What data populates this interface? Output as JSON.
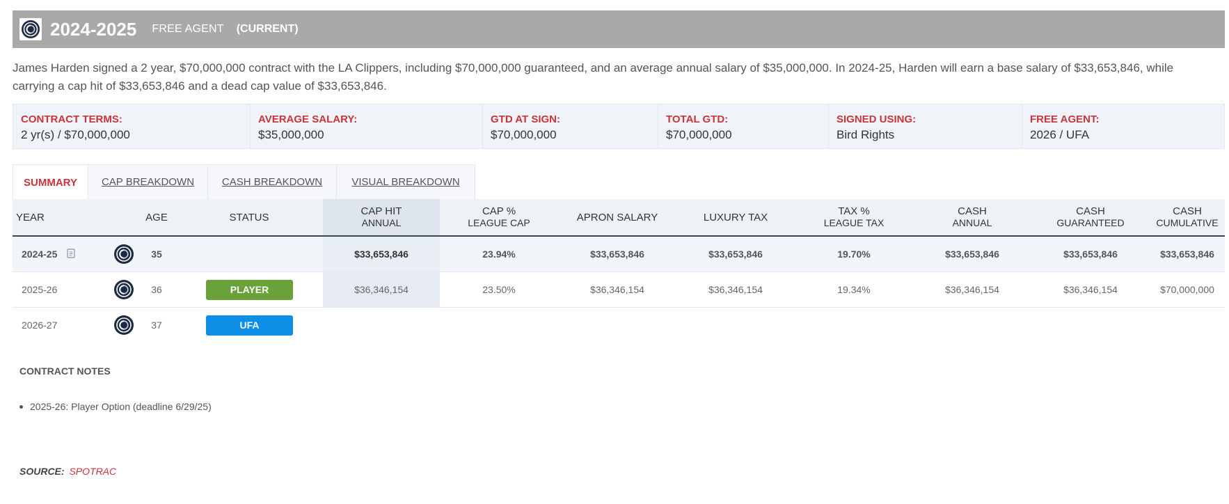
{
  "header": {
    "year": "2024-2025",
    "free_agent": "FREE AGENT",
    "current": "(CURRENT)"
  },
  "description": "James Harden signed a 2 year, $70,000,000 contract with the LA Clippers, including $70,000,000 guaranteed, and an average annual salary of $35,000,000. In 2024-25, Harden will earn a base salary of $33,653,846, while carrying a cap hit of $33,653,846 and a dead cap value of $33,653,846.",
  "terms": [
    {
      "label": "CONTRACT TERMS:",
      "value": "2 yr(s) / $70,000,000"
    },
    {
      "label": "AVERAGE SALARY:",
      "value": "$35,000,000"
    },
    {
      "label": "GTD AT SIGN:",
      "value": "$70,000,000"
    },
    {
      "label": "TOTAL GTD:",
      "value": "$70,000,000"
    },
    {
      "label": "SIGNED USING:",
      "value": "Bird Rights"
    },
    {
      "label": "FREE AGENT:",
      "value": "2026 / UFA"
    }
  ],
  "tabs": [
    "SUMMARY",
    "CAP BREAKDOWN",
    "CASH BREAKDOWN",
    "VISUAL BREAKDOWN"
  ],
  "columns": {
    "year": "YEAR",
    "age": "AGE",
    "status": "STATUS",
    "cap_hit": [
      "CAP HIT",
      "ANNUAL"
    ],
    "cap_pct": [
      "CAP %",
      "LEAGUE CAP"
    ],
    "apron": "APRON SALARY",
    "luxury": "LUXURY TAX",
    "tax_pct": [
      "TAX %",
      "LEAGUE TAX"
    ],
    "cash_annual": [
      "CASH",
      "ANNUAL"
    ],
    "cash_gtd": [
      "CASH",
      "GUARANTEED"
    ],
    "cash_cum": [
      "CASH",
      "CUMULATIVE"
    ]
  },
  "rows": [
    {
      "year": "2024-25",
      "age": "35",
      "status": "",
      "cap_hit": "$33,653,846",
      "cap_pct": "23.94%",
      "apron": "$33,653,846",
      "luxury": "$33,653,846",
      "tax_pct": "19.70%",
      "cash_annual": "$33,653,846",
      "cash_gtd": "$33,653,846",
      "cash_cum": "$33,653,846"
    },
    {
      "year": "2025-26",
      "age": "36",
      "status": "PLAYER",
      "cap_hit": "$36,346,154",
      "cap_pct": "23.50%",
      "apron": "$36,346,154",
      "luxury": "$36,346,154",
      "tax_pct": "19.34%",
      "cash_annual": "$36,346,154",
      "cash_gtd": "$36,346,154",
      "cash_cum": "$70,000,000"
    },
    {
      "year": "2026-27",
      "age": "37",
      "status": "UFA"
    }
  ],
  "notes": {
    "title": "CONTRACT NOTES",
    "items": [
      "2025-26: Player Option (deadline 6/29/25)"
    ]
  },
  "source": {
    "label": "SOURCE:",
    "name": "SPOTRAC"
  },
  "icons": {
    "team_logo": "clippers-logo-icon",
    "document": "document-icon"
  },
  "colors": {
    "accent_red": "#c8343a",
    "player_badge": "#6aa23a",
    "ufa_badge": "#0d8fe8",
    "header_bg": "#a9a9a9"
  }
}
